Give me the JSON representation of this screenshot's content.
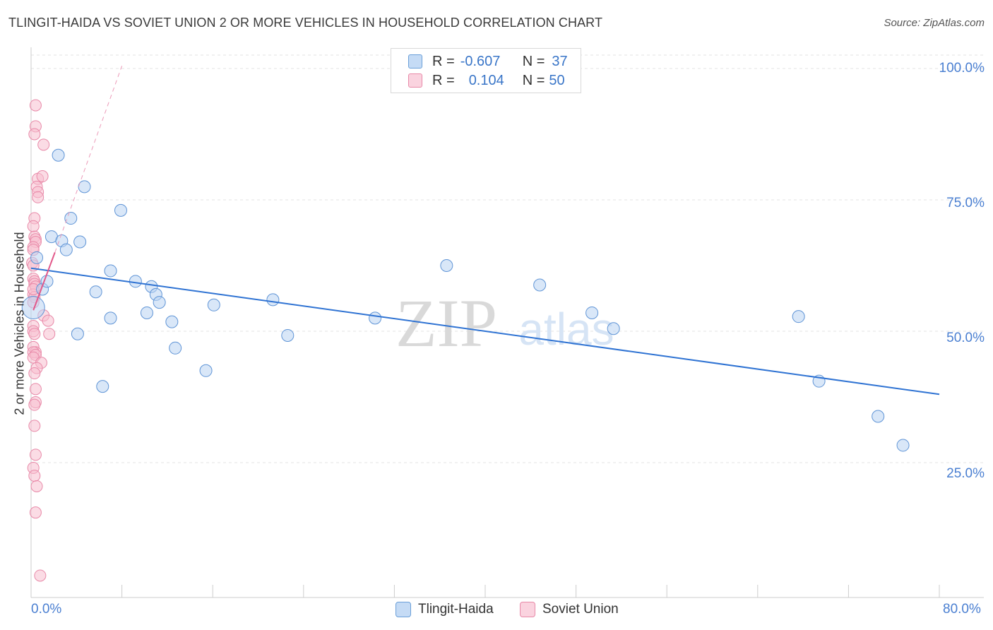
{
  "title": "TLINGIT-HAIDA VS SOVIET UNION 2 OR MORE VEHICLES IN HOUSEHOLD CORRELATION CHART",
  "source": "Source: ZipAtlas.com",
  "watermark": {
    "zip": "ZIP",
    "atlas": "atlas"
  },
  "legend": {
    "r_label": "R =",
    "n_label": "N =",
    "series": [
      {
        "name": "Tlingit-Haida",
        "r": "-0.607",
        "n": "37",
        "color": "#a8c8f0",
        "stroke": "#6a9fd8"
      },
      {
        "name": "Soviet Union",
        "r": "0.104",
        "n": "50",
        "color": "#f7bfd0",
        "stroke": "#e889a8"
      }
    ]
  },
  "chart_data": {
    "type": "scatter",
    "title": "TLINGIT-HAIDA VS SOVIET UNION 2 OR MORE VEHICLES IN HOUSEHOLD CORRELATION CHART",
    "xlabel": "",
    "ylabel": "2 or more Vehicles in Household",
    "xlim": [
      0,
      80
    ],
    "ylim": [
      0,
      103
    ],
    "x_tick_labels": [
      "0.0%",
      "80.0%"
    ],
    "y_tick_labels": [
      "100.0%",
      "75.0%",
      "50.0%",
      "25.0%"
    ],
    "y_ticks": [
      100,
      75,
      50,
      25
    ],
    "series": [
      {
        "name": "Tlingit-Haida",
        "points": [
          [
            0.2,
            54.5
          ],
          [
            0.5,
            64
          ],
          [
            1.0,
            58
          ],
          [
            1.4,
            59.5
          ],
          [
            2.4,
            83.5
          ],
          [
            1.8,
            68
          ],
          [
            2.7,
            67.2
          ],
          [
            3.1,
            65.5
          ],
          [
            3.5,
            71.5
          ],
          [
            4.3,
            67
          ],
          [
            4.7,
            77.5
          ],
          [
            4.1,
            49.5
          ],
          [
            5.7,
            57.5
          ],
          [
            6.3,
            39.5
          ],
          [
            7.0,
            61.5
          ],
          [
            7.0,
            52.5
          ],
          [
            7.9,
            73
          ],
          [
            9.2,
            59.5
          ],
          [
            10.2,
            53.5
          ],
          [
            10.6,
            58.5
          ],
          [
            11.0,
            57
          ],
          [
            11.3,
            55.5
          ],
          [
            12.4,
            51.8
          ],
          [
            12.7,
            46.8
          ],
          [
            15.4,
            42.5
          ],
          [
            16.1,
            55
          ],
          [
            21.3,
            56
          ],
          [
            22.6,
            49.2
          ],
          [
            30.3,
            52.5
          ],
          [
            36.6,
            62.5
          ],
          [
            44.8,
            58.8
          ],
          [
            49.4,
            53.5
          ],
          [
            51.3,
            50.5
          ],
          [
            67.6,
            52.8
          ],
          [
            69.4,
            40.5
          ],
          [
            74.6,
            33.8
          ],
          [
            76.8,
            28.3
          ]
        ],
        "trend": [
          [
            0,
            62
          ],
          [
            80,
            38
          ]
        ]
      },
      {
        "name": "Soviet Union",
        "points": [
          [
            0.4,
            93
          ],
          [
            0.4,
            89
          ],
          [
            0.3,
            87.5
          ],
          [
            1.1,
            85.5
          ],
          [
            0.6,
            79
          ],
          [
            1.0,
            79.5
          ],
          [
            0.5,
            77.5
          ],
          [
            0.6,
            76.5
          ],
          [
            0.6,
            75.5
          ],
          [
            0.3,
            71.5
          ],
          [
            0.2,
            70
          ],
          [
            0.3,
            68
          ],
          [
            0.4,
            67.5
          ],
          [
            0.4,
            67
          ],
          [
            0.2,
            66
          ],
          [
            0.2,
            65.5
          ],
          [
            0.1,
            63
          ],
          [
            0.2,
            60
          ],
          [
            0.3,
            59.5
          ],
          [
            0.3,
            59
          ],
          [
            0.4,
            58.5
          ],
          [
            0.2,
            57
          ],
          [
            0.3,
            56.5
          ],
          [
            0.2,
            55.5
          ],
          [
            1.1,
            53
          ],
          [
            1.5,
            52
          ],
          [
            0.2,
            51
          ],
          [
            0.2,
            50
          ],
          [
            0.3,
            49.5
          ],
          [
            1.6,
            49.5
          ],
          [
            0.2,
            47
          ],
          [
            0.4,
            46
          ],
          [
            0.2,
            46
          ],
          [
            0.4,
            45.5
          ],
          [
            0.2,
            45
          ],
          [
            0.9,
            44
          ],
          [
            0.5,
            43
          ],
          [
            0.3,
            42
          ],
          [
            0.4,
            39
          ],
          [
            0.4,
            36.5
          ],
          [
            0.3,
            36
          ],
          [
            0.3,
            32
          ],
          [
            0.4,
            26.5
          ],
          [
            0.2,
            24
          ],
          [
            0.3,
            22.5
          ],
          [
            0.5,
            20.5
          ],
          [
            0.4,
            15.5
          ],
          [
            0.8,
            3.5
          ],
          [
            0.2,
            62.5
          ],
          [
            0.2,
            58
          ]
        ],
        "trend_solid": [
          [
            0.2,
            54
          ],
          [
            2.1,
            65
          ]
        ],
        "trend_dashed": [
          [
            2.1,
            65
          ],
          [
            8.0,
            100.5
          ]
        ]
      }
    ]
  }
}
